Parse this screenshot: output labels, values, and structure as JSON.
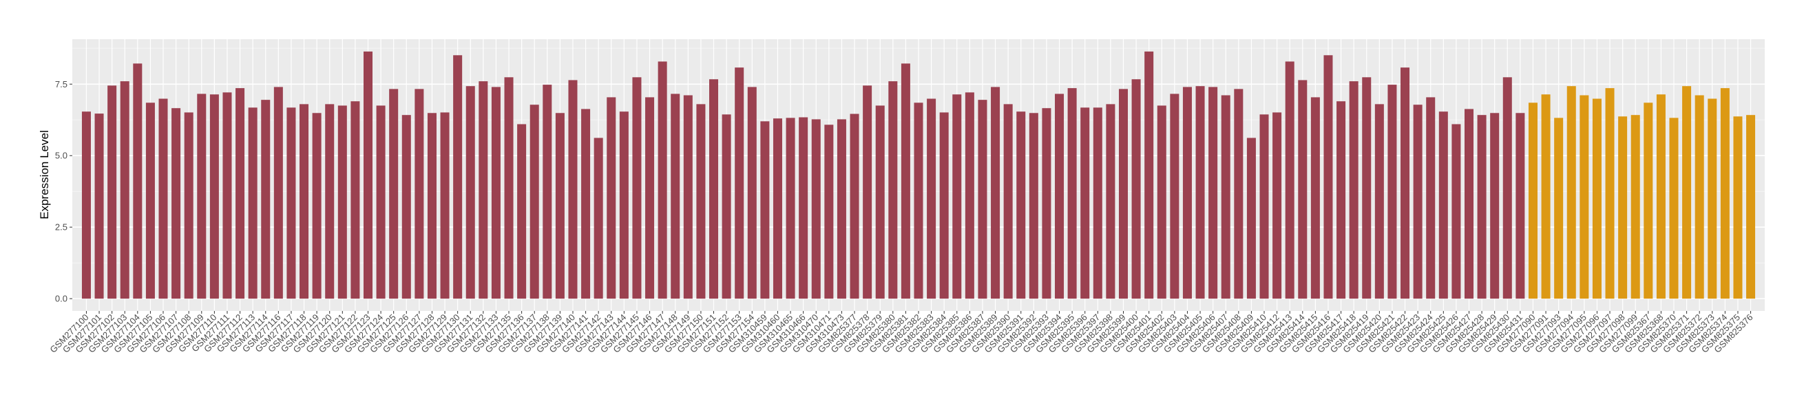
{
  "chart_data": {
    "type": "bar",
    "title": "",
    "xlabel": "",
    "ylabel": "Expression Level",
    "ylim": [
      -0.43,
      9.07
    ],
    "yticks": [
      "0.0",
      "2.5",
      "5.0",
      "7.5"
    ],
    "ytick_values": [
      0,
      2.5,
      5,
      7.5
    ],
    "grid": true,
    "legend": "none",
    "panel_background": "#EBEBEB",
    "series": [
      {
        "color": "#9B4150",
        "categories": [
          "GSM277100",
          "GSM277101",
          "GSM277102",
          "GSM277103",
          "GSM277104",
          "GSM277105",
          "GSM277106",
          "GSM277107",
          "GSM277108",
          "GSM277109",
          "GSM277110",
          "GSM277111",
          "GSM277112",
          "GSM277113",
          "GSM277114",
          "GSM277116",
          "GSM277117",
          "GSM277118",
          "GSM277119",
          "GSM277120",
          "GSM277121",
          "GSM277122",
          "GSM277123",
          "GSM277124",
          "GSM277125",
          "GSM277126",
          "GSM277127",
          "GSM277128",
          "GSM277129",
          "GSM277130",
          "GSM277131",
          "GSM277132",
          "GSM277133",
          "GSM277135",
          "GSM277136",
          "GSM277137",
          "GSM277138",
          "GSM277139",
          "GSM277140",
          "GSM277141",
          "GSM277142",
          "GSM277143",
          "GSM277144",
          "GSM277145",
          "GSM277146",
          "GSM277147",
          "GSM277148",
          "GSM277149",
          "GSM277150",
          "GSM277151",
          "GSM277152",
          "GSM277153",
          "GSM277154",
          "GSM310459",
          "GSM310460",
          "GSM310465",
          "GSM310466",
          "GSM310470",
          "GSM310471",
          "GSM310473",
          "GSM825377",
          "GSM825378",
          "GSM825379",
          "GSM825380",
          "GSM825381",
          "GSM825382",
          "GSM825383",
          "GSM825384",
          "GSM825385",
          "GSM825386",
          "GSM825387",
          "GSM825389",
          "GSM825390",
          "GSM825391",
          "GSM825392",
          "GSM825393",
          "GSM825394",
          "GSM825395",
          "GSM825396",
          "GSM825397",
          "GSM825398",
          "GSM825399",
          "GSM825400",
          "GSM825401",
          "GSM825402",
          "GSM825403",
          "GSM825404",
          "GSM825405",
          "GSM825406",
          "GSM825407",
          "GSM825408",
          "GSM825409",
          "GSM825410",
          "GSM825412",
          "GSM825413",
          "GSM825414",
          "GSM825415",
          "GSM825416",
          "GSM825417",
          "GSM825418",
          "GSM825419",
          "GSM825420",
          "GSM825421",
          "GSM825422",
          "GSM825423",
          "GSM825424",
          "GSM825425",
          "GSM825426",
          "GSM825427",
          "GSM825428",
          "GSM825429",
          "GSM825430",
          "GSM825431"
        ],
        "values": [
          6.54,
          6.47,
          7.45,
          7.6,
          8.22,
          6.85,
          6.99,
          6.66,
          6.51,
          7.16,
          7.14,
          7.21,
          7.36,
          6.68,
          6.95,
          7.4,
          6.68,
          6.8,
          6.49,
          6.8,
          6.75,
          6.9,
          8.64,
          6.75,
          7.33,
          6.42,
          7.33,
          6.49,
          6.51,
          8.51,
          7.43,
          7.6,
          7.4,
          7.74,
          6.1,
          6.78,
          7.48,
          6.49,
          7.64,
          6.63,
          5.62,
          7.04,
          6.54,
          7.74,
          7.04,
          8.29,
          7.16,
          7.11,
          6.8,
          7.67,
          6.44,
          8.08,
          7.4,
          6.2,
          6.3,
          6.32,
          6.34,
          6.27,
          6.08,
          6.27,
          6.46,
          7.45,
          6.75,
          7.6,
          8.22,
          6.85,
          6.99,
          6.51,
          7.14,
          7.21,
          6.95,
          7.4,
          6.8,
          6.54,
          6.49,
          6.66,
          7.16,
          7.36,
          6.68,
          6.68,
          6.8,
          7.33,
          7.67,
          8.64,
          6.75,
          7.16,
          7.4,
          7.43,
          7.4,
          7.11,
          7.33,
          5.62,
          6.44,
          6.51,
          8.29,
          7.64,
          7.04,
          8.51,
          6.9,
          7.6,
          7.74,
          6.8,
          7.48,
          8.08,
          6.78,
          7.04,
          6.54,
          6.1,
          6.63,
          6.42,
          6.49,
          7.74,
          6.49
        ]
      },
      {
        "color": "#DC9914",
        "categories": [
          "GSM277090",
          "GSM277091",
          "GSM277093",
          "GSM277094",
          "GSM277095",
          "GSM277096",
          "GSM277097",
          "GSM277098",
          "GSM277099",
          "GSM825367",
          "GSM825368",
          "GSM825370",
          "GSM825371",
          "GSM825372",
          "GSM825373",
          "GSM825374",
          "GSM825375",
          "GSM825376"
        ],
        "values": [
          6.85,
          7.14,
          6.32,
          7.43,
          7.11,
          6.99,
          7.36,
          6.37,
          6.42,
          6.85,
          7.14,
          6.32,
          7.43,
          7.11,
          6.99,
          7.36,
          6.37,
          6.42
        ]
      }
    ]
  }
}
